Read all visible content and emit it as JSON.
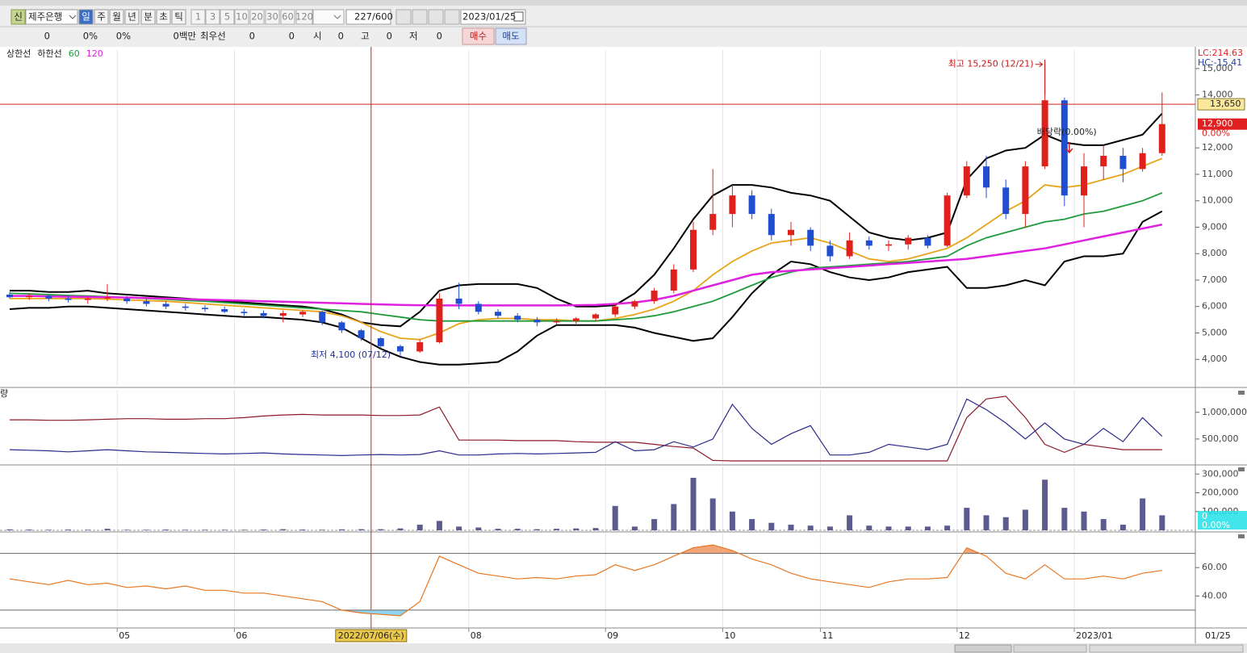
{
  "toolbar": {
    "market_badge": "신",
    "stock_name": "제주은행",
    "periods": [
      "일",
      "주",
      "월",
      "년",
      "분",
      "초",
      "틱"
    ],
    "intervals": [
      "1",
      "3",
      "5",
      "10",
      "20",
      "30",
      "60",
      "120"
    ],
    "count": "227",
    "count_max": "/600",
    "date": "2023/01/25",
    "quote": [
      "0",
      "0%",
      "0%",
      "0백만",
      "최우선",
      "0",
      "0",
      "시",
      "0",
      "고",
      "0",
      "저",
      "0"
    ],
    "buy": "매수",
    "sell": "매도"
  },
  "chart_data": [
    {
      "type": "candlestick",
      "categories": [
        null,
        null,
        null,
        null,
        null,
        null,
        "05",
        null,
        null,
        null,
        null,
        null,
        "06",
        null,
        null,
        null,
        null,
        null,
        null,
        "2022/07/06(수)",
        null,
        null,
        null,
        null,
        "08",
        null,
        null,
        null,
        null,
        null,
        null,
        "09",
        null,
        null,
        null,
        null,
        null,
        "10",
        null,
        null,
        null,
        null,
        "11",
        null,
        null,
        null,
        null,
        null,
        null,
        "12",
        null,
        null,
        null,
        null,
        null,
        "2023/01",
        null,
        null,
        null,
        null
      ],
      "x_axis_end_label": "01/25",
      "open": [
        6450,
        6350,
        6400,
        6300,
        6250,
        6300,
        6300,
        6200,
        6100,
        6000,
        5950,
        5900,
        5800,
        5750,
        5650,
        5700,
        5800,
        5400,
        5100,
        4800,
        4500,
        4300,
        4650,
        6300,
        6100,
        5800,
        5650,
        5500,
        5400,
        5450,
        5550,
        5700,
        6000,
        6200,
        6600,
        7400,
        8900,
        9500,
        10200,
        9500,
        8700,
        8900,
        8300,
        7900,
        8500,
        8300,
        8350,
        8600,
        8300,
        10200,
        11300,
        10500,
        9500,
        11300,
        13800,
        10200,
        11300,
        11700,
        11200,
        11800
      ],
      "high": [
        6550,
        6500,
        6450,
        6400,
        6350,
        6850,
        6400,
        6300,
        6200,
        6100,
        6050,
        6000,
        5900,
        5850,
        5850,
        5850,
        5850,
        5450,
        5150,
        4850,
        4550,
        4750,
        6500,
        6900,
        6200,
        5900,
        5750,
        5600,
        5550,
        5600,
        5750,
        6100,
        6250,
        6700,
        7600,
        9200,
        11200,
        10600,
        10400,
        9700,
        9200,
        9000,
        8500,
        8800,
        8650,
        8500,
        8700,
        8700,
        10300,
        11500,
        11700,
        10800,
        11500,
        15250,
        13900,
        11800,
        12100,
        12000,
        12000,
        14100
      ],
      "low": [
        6300,
        6250,
        6200,
        6150,
        6100,
        6200,
        6100,
        6000,
        5900,
        5850,
        5800,
        5750,
        5650,
        5550,
        5400,
        5600,
        5300,
        5000,
        4700,
        4400,
        4100,
        4250,
        4600,
        5900,
        5700,
        5550,
        5400,
        5250,
        5300,
        5350,
        5450,
        5600,
        5900,
        6100,
        6500,
        7300,
        8700,
        9000,
        9300,
        8500,
        8300,
        8100,
        7700,
        7800,
        8150,
        8100,
        8150,
        8200,
        8250,
        10100,
        10100,
        9300,
        9000,
        11200,
        9800,
        9000,
        10800,
        10700,
        11100,
        11700
      ],
      "close": [
        6350,
        6400,
        6300,
        6250,
        6300,
        6350,
        6200,
        6100,
        6000,
        5950,
        5900,
        5800,
        5750,
        5650,
        5750,
        5800,
        5400,
        5100,
        4800,
        4500,
        4300,
        4650,
        6300,
        6100,
        5800,
        5650,
        5500,
        5400,
        5450,
        5550,
        5700,
        6000,
        6200,
        6600,
        7400,
        8900,
        9500,
        10200,
        9500,
        8700,
        8900,
        8300,
        7900,
        8500,
        8300,
        8350,
        8600,
        8300,
        10200,
        11300,
        10500,
        9500,
        11300,
        13800,
        10200,
        11300,
        11700,
        11200,
        11800,
        12900
      ],
      "up_color": "#e0201b",
      "down_color": "#1f4fd0",
      "series": [
        {
          "name": "상한선",
          "color": "#000000",
          "values": [
            6600,
            6600,
            6550,
            6550,
            6600,
            6500,
            6450,
            6400,
            6350,
            6300,
            6250,
            6200,
            6150,
            6100,
            6050,
            6000,
            5900,
            5700,
            5400,
            5300,
            5250,
            5800,
            6600,
            6800,
            6850,
            6850,
            6850,
            6700,
            6300,
            6000,
            6000,
            6050,
            6500,
            7200,
            8200,
            9300,
            10200,
            10600,
            10600,
            10500,
            10300,
            10200,
            10000,
            9400,
            8800,
            8600,
            8500,
            8600,
            8800,
            10800,
            11600,
            11900,
            12000,
            12500,
            12200,
            12100,
            12100,
            12300,
            12500,
            13300
          ]
        },
        {
          "name": "하한선",
          "color": "#000000",
          "values": [
            5900,
            5950,
            5950,
            6000,
            6000,
            5950,
            5900,
            5850,
            5800,
            5750,
            5700,
            5650,
            5600,
            5600,
            5550,
            5500,
            5400,
            5200,
            4800,
            4400,
            4100,
            3900,
            3800,
            3800,
            3850,
            3900,
            4300,
            4900,
            5300,
            5300,
            5300,
            5300,
            5200,
            5000,
            4850,
            4700,
            4800,
            5600,
            6500,
            7200,
            7700,
            7600,
            7300,
            7100,
            7000,
            7100,
            7300,
            7400,
            7500,
            6700,
            6700,
            6800,
            7000,
            6800,
            7700,
            7900,
            7900,
            8000,
            9200,
            9600
          ]
        },
        {
          "color": "#e8a417",
          "values": [
            6300,
            6300,
            6300,
            6300,
            6300,
            6280,
            6250,
            6220,
            6200,
            6150,
            6100,
            6050,
            6000,
            5950,
            5900,
            5850,
            5800,
            5650,
            5400,
            5050,
            4800,
            4750,
            5000,
            5350,
            5500,
            5550,
            5550,
            5500,
            5500,
            5450,
            5450,
            5550,
            5700,
            5900,
            6200,
            6600,
            7200,
            7700,
            8100,
            8400,
            8500,
            8600,
            8400,
            8100,
            7800,
            7700,
            7800,
            8000,
            8200,
            8600,
            9100,
            9600,
            10000,
            10600,
            10500,
            10600,
            10800,
            11000,
            11300,
            11600
          ]
        },
        {
          "name": "60",
          "color": "#1f9a3a",
          "values": [
            6500,
            6480,
            6450,
            6420,
            6400,
            6370,
            6340,
            6300,
            6270,
            6230,
            6200,
            6150,
            6100,
            6050,
            6000,
            5950,
            5900,
            5850,
            5800,
            5700,
            5600,
            5500,
            5450,
            5450,
            5450,
            5450,
            5450,
            5450,
            5450,
            5450,
            5450,
            5500,
            5550,
            5650,
            5800,
            6000,
            6200,
            6500,
            6800,
            7100,
            7300,
            7450,
            7500,
            7550,
            7600,
            7650,
            7700,
            7800,
            7900,
            8300,
            8600,
            8800,
            9000,
            9200,
            9300,
            9500,
            9600,
            9800,
            10000,
            10300
          ]
        },
        {
          "name": "120",
          "color": "#e020e0",
          "values": [
            6400,
            6400,
            6380,
            6370,
            6360,
            6350,
            6340,
            6320,
            6300,
            6280,
            6260,
            6240,
            6220,
            6200,
            6180,
            6160,
            6140,
            6120,
            6100,
            6080,
            6060,
            6050,
            6040,
            6040,
            6040,
            6040,
            6040,
            6040,
            6040,
            6050,
            6060,
            6100,
            6150,
            6250,
            6400,
            6600,
            6800,
            7000,
            7200,
            7300,
            7350,
            7400,
            7450,
            7500,
            7550,
            7600,
            7650,
            7700,
            7750,
            7800,
            7900,
            8000,
            8100,
            8200,
            8350,
            8500,
            8650,
            8800,
            8950,
            9100
          ]
        }
      ],
      "ylim": [
        3000,
        15700
      ],
      "yticks": [
        {
          "value": 4000,
          "label": "4,000"
        },
        {
          "value": 5000,
          "label": "5,000"
        },
        {
          "value": 6000,
          "label": "6,000"
        },
        {
          "value": 7000,
          "label": "7,000"
        },
        {
          "value": 8000,
          "label": "8,000"
        },
        {
          "value": 9000,
          "label": "9,000"
        },
        {
          "value": 10000,
          "label": "10,000"
        },
        {
          "value": 11000,
          "label": "11,000"
        },
        {
          "value": 12000,
          "label": "12,000"
        },
        {
          "value": 14000,
          "label": "14,000"
        },
        {
          "value": 15000,
          "label": "15,000"
        }
      ],
      "high_annotation": {
        "value": 15250,
        "text": "최고 15,250 (12/21)"
      },
      "low_annotation": {
        "value": 4100,
        "text": "최저 4,100 (07/12)"
      },
      "dividend_annotation": "배당락(0.00%)",
      "price_line": {
        "value": 13650,
        "label": "13,650"
      },
      "last_price": {
        "value": 12900,
        "label": "12,900"
      },
      "change_label": "0.00%",
      "lc_label": "LC:214.63",
      "hc_label": "HC:-15.41"
    },
    {
      "type": "line",
      "title": "량",
      "series": [
        {
          "color": "#8b1a2a",
          "values": [
            860000,
            860000,
            850000,
            850000,
            860000,
            870000,
            880000,
            880000,
            870000,
            870000,
            880000,
            880000,
            900000,
            930000,
            950000,
            960000,
            950000,
            950000,
            950000,
            940000,
            940000,
            950000,
            1100000,
            480000,
            480000,
            480000,
            470000,
            470000,
            470000,
            450000,
            440000,
            440000,
            440000,
            400000,
            360000,
            330000,
            100000,
            90000,
            90000,
            90000,
            90000,
            90000,
            90000,
            90000,
            90000,
            90000,
            90000,
            90000,
            90000,
            900000,
            1250000,
            1300000,
            900000,
            400000,
            250000,
            400000,
            350000,
            300000,
            300000,
            300000
          ]
        },
        {
          "color": "#2a2a8a",
          "values": [
            300000,
            290000,
            280000,
            260000,
            280000,
            300000,
            280000,
            260000,
            250000,
            240000,
            230000,
            220000,
            230000,
            240000,
            220000,
            210000,
            200000,
            190000,
            200000,
            210000,
            200000,
            210000,
            280000,
            200000,
            200000,
            220000,
            230000,
            220000,
            230000,
            240000,
            250000,
            450000,
            280000,
            300000,
            450000,
            350000,
            500000,
            1150000,
            700000,
            400000,
            600000,
            750000,
            200000,
            200000,
            250000,
            400000,
            350000,
            300000,
            400000,
            1250000,
            1050000,
            800000,
            500000,
            800000,
            500000,
            400000,
            700000,
            450000,
            900000,
            550000
          ]
        }
      ],
      "ylim": [
        30000,
        1420000
      ],
      "yticks": [
        {
          "value": 500000,
          "label": "500,000"
        },
        {
          "value": 1000000,
          "label": "1,000,000"
        }
      ]
    },
    {
      "type": "bar",
      "color": "#5b5b8f",
      "values": [
        5000,
        4000,
        3000,
        4000,
        3000,
        8000,
        3000,
        3000,
        4000,
        3000,
        3000,
        3000,
        3000,
        4000,
        6000,
        4000,
        3000,
        5000,
        6000,
        6000,
        10000,
        30000,
        50000,
        20000,
        15000,
        8000,
        8000,
        6000,
        8000,
        10000,
        12000,
        130000,
        20000,
        60000,
        140000,
        280000,
        170000,
        100000,
        60000,
        40000,
        30000,
        25000,
        20000,
        80000,
        25000,
        20000,
        20000,
        20000,
        25000,
        120000,
        80000,
        70000,
        110000,
        270000,
        120000,
        100000,
        60000,
        30000,
        170000,
        80000
      ],
      "ylim": [
        0,
        340000
      ],
      "yticks": [
        {
          "value": 100000,
          "label": "100,000"
        },
        {
          "value": 200000,
          "label": "200,000"
        },
        {
          "value": 300000,
          "label": "300,000"
        }
      ],
      "value_label": "0",
      "change_label": "0.00%"
    },
    {
      "type": "line",
      "color": "#e87722",
      "values": [
        52,
        50,
        48,
        51,
        48,
        49,
        46,
        47,
        45,
        47,
        44,
        44,
        42,
        42,
        40,
        38,
        36,
        30,
        28,
        27,
        26,
        36,
        68,
        62,
        56,
        54,
        52,
        53,
        52,
        54,
        55,
        62,
        58,
        62,
        68,
        74,
        76,
        72,
        66,
        62,
        56,
        52,
        50,
        48,
        46,
        50,
        52,
        52,
        53,
        74,
        68,
        56,
        52,
        62,
        52,
        52,
        54,
        52,
        56,
        58
      ],
      "levels": [
        30,
        70
      ],
      "ylim": [
        18,
        84
      ],
      "yticks": [
        {
          "value": 40,
          "label": "40.00"
        },
        {
          "value": 60,
          "label": "60.00"
        }
      ]
    }
  ]
}
